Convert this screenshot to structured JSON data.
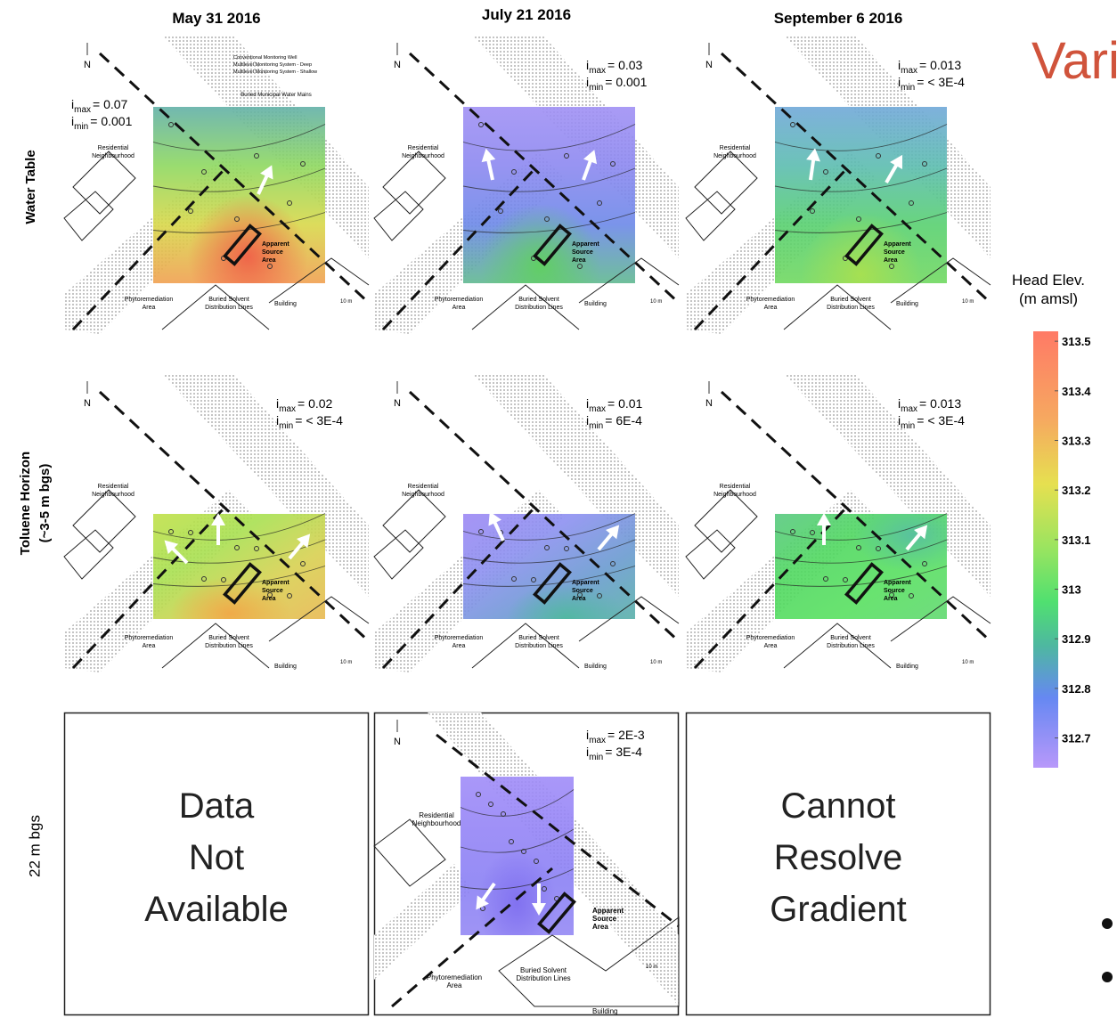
{
  "title_fragment": "Vari",
  "columns": [
    "May 31 2016",
    "July 21 2016",
    "September 6 2016"
  ],
  "rows": [
    {
      "label": [
        "Water Table"
      ]
    },
    {
      "label": [
        "Toluene Horizon",
        "(~3-5 m bgs)"
      ]
    },
    {
      "label": [
        "22 m bgs"
      ]
    }
  ],
  "gradient_symbol": {
    "i": "i",
    "max": "max",
    "min": "min"
  },
  "panels": [
    [
      {
        "imax": "= 0.07",
        "imin": "= 0.001"
      },
      {
        "imax": "= 0.03",
        "imin": "= 0.001"
      },
      {
        "imax": "= 0.013",
        "imin": "= < 3E-4"
      }
    ],
    [
      {
        "imax": "= 0.02",
        "imin": "= < 3E-4"
      },
      {
        "imax": "= 0.01",
        "imin": "= 6E-4"
      },
      {
        "imax": "= 0.013",
        "imin": "= < 3E-4"
      }
    ],
    [
      {
        "text": [
          "Data",
          "Not",
          "Available"
        ]
      },
      {
        "imax": "= 2E-3",
        "imin": "= 3E-4"
      },
      {
        "text": [
          "Cannot",
          "Resolve",
          "Gradient"
        ]
      }
    ]
  ],
  "map_labels": {
    "north": "N",
    "residential": [
      "Residential",
      "Neighbourhood"
    ],
    "source": [
      "Apparent",
      "Source",
      "Area"
    ],
    "lines": [
      "Buried Solvent",
      "Distribution Lines"
    ],
    "phyto": [
      "Phytoremediation",
      "Area"
    ],
    "building": "Building",
    "scale": "10 m"
  },
  "legend": [
    "Conventional Monitoring Well",
    "Multilevel Monitoring System - Deep",
    "Multilevel Monitoring System - Shallow",
    "Buried Municipal Water Mains"
  ],
  "colorbar": {
    "title": [
      "Head Elev.",
      "(m amsl)"
    ],
    "range": [
      312.64,
      313.52
    ],
    "ticks": [
      313.5,
      313.4,
      313.3,
      313.2,
      313.1,
      313,
      312.9,
      312.8,
      312.7
    ]
  }
}
